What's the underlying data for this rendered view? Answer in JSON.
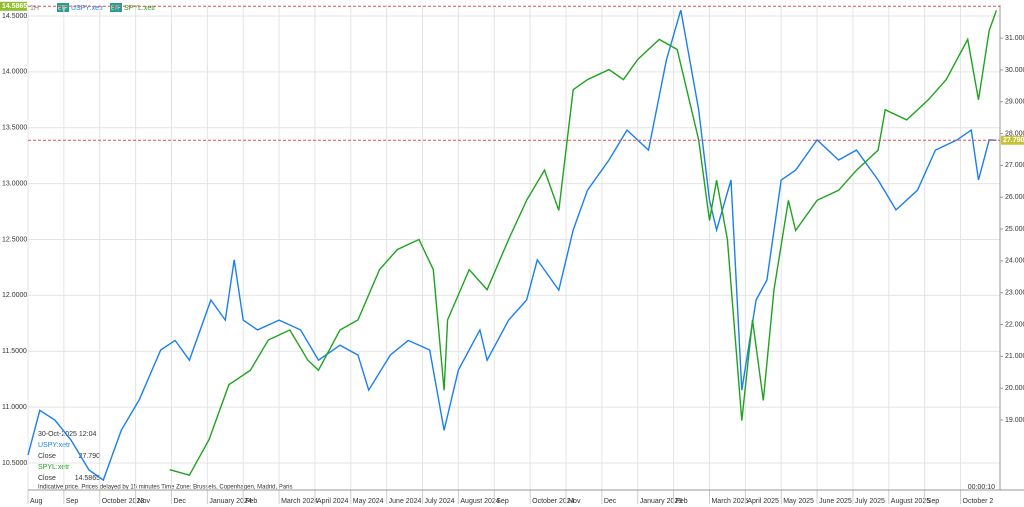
{
  "chart_data": {
    "type": "line",
    "interval": "1H",
    "series": [
      {
        "name": "USPY:xetr",
        "badge": "ETF",
        "color": "#1a7ff0",
        "axis": "y2",
        "x": [
          0,
          0.33,
          0.75,
          1.2,
          1.7,
          2.1,
          2.6,
          3.1,
          3.7,
          4.1,
          4.5,
          5.1,
          5.5,
          5.75,
          6.0,
          6.4,
          7.0,
          7.6,
          8.1,
          8.7,
          9.2,
          9.5,
          10.1,
          10.6,
          11.2,
          11.6,
          12.0,
          12.6,
          12.8,
          13.4,
          13.9,
          14.2,
          14.8,
          15.2,
          15.6,
          16.2,
          16.7,
          17.3,
          17.8,
          18.2,
          18.7,
          19.0,
          19.2,
          19.6,
          19.9,
          20.3,
          20.6,
          21.0,
          21.4,
          22.0,
          22.6,
          23.1,
          23.7,
          24.2,
          24.8,
          25.3,
          25.9,
          26.3,
          26.5,
          26.8,
          27.0
        ],
        "values": [
          17.9,
          19.3,
          19.0,
          18.37,
          17.43,
          17.11,
          18.68,
          19.63,
          21.2,
          21.5,
          20.88,
          22.77,
          22.14,
          24.03,
          22.14,
          21.83,
          22.14,
          21.83,
          20.88,
          21.35,
          21.04,
          19.94,
          21.04,
          21.5,
          21.2,
          18.68,
          20.57,
          21.83,
          20.88,
          22.14,
          22.77,
          24.03,
          23.08,
          24.97,
          26.22,
          27.17,
          28.11,
          27.48,
          30.31,
          31.88,
          28.74,
          25.91,
          24.97,
          26.54,
          19.94,
          22.77,
          23.4,
          26.54,
          26.85,
          27.8,
          27.17,
          27.48,
          26.54,
          25.6,
          26.22,
          27.48,
          27.8,
          28.11,
          26.54,
          27.8,
          27.79
        ]
      },
      {
        "name": "SPYL:xetr",
        "badge": "ETF",
        "color": "#1fa31f",
        "x": [
          3.95,
          4.5,
          5.05,
          5.6,
          6.2,
          6.7,
          7.3,
          7.8,
          8.1,
          8.7,
          9.2,
          9.8,
          10.3,
          10.9,
          11.3,
          11.6,
          11.7,
          12.3,
          12.8,
          13.4,
          13.9,
          14.4,
          14.8,
          15.2,
          15.6,
          16.2,
          16.6,
          17.0,
          17.6,
          18.1,
          18.7,
          19.0,
          19.2,
          19.5,
          19.9,
          20.2,
          20.5,
          20.8,
          21.2,
          21.4,
          22.0,
          22.6,
          23.1,
          23.7,
          23.9,
          24.5,
          25.1,
          25.6,
          26.2,
          26.5,
          26.8,
          27.0
        ],
        "values": [
          10.44,
          10.39,
          10.71,
          11.2,
          11.33,
          11.6,
          11.69,
          11.42,
          11.33,
          11.69,
          11.78,
          12.23,
          12.41,
          12.5,
          12.23,
          11.15,
          11.78,
          12.23,
          12.05,
          12.5,
          12.85,
          13.12,
          12.76,
          13.84,
          13.93,
          14.02,
          13.93,
          14.11,
          14.29,
          14.2,
          13.39,
          12.67,
          13.03,
          12.5,
          10.88,
          11.78,
          11.06,
          12.05,
          12.85,
          12.58,
          12.85,
          12.94,
          13.12,
          13.3,
          13.66,
          13.57,
          13.75,
          13.93,
          14.29,
          13.75,
          14.37,
          14.55
        ]
      }
    ],
    "xlim": [
      0,
      27.1
    ],
    "xticks": [
      {
        "value": 0,
        "label": "Aug"
      },
      {
        "value": 1,
        "label": "Sep"
      },
      {
        "value": 2,
        "label": "October 2023"
      },
      {
        "value": 3,
        "label": "Nov"
      },
      {
        "value": 4,
        "label": "Dec"
      },
      {
        "value": 5,
        "label": "January 2024"
      },
      {
        "value": 6,
        "label": "Feb"
      },
      {
        "value": 7,
        "label": "March 2024"
      },
      {
        "value": 8,
        "label": "April 2024"
      },
      {
        "value": 9,
        "label": "May 2024"
      },
      {
        "value": 10,
        "label": "June 2024"
      },
      {
        "value": 11,
        "label": "July 2024"
      },
      {
        "value": 12,
        "label": "August 2024"
      },
      {
        "value": 13,
        "label": "Sep"
      },
      {
        "value": 14,
        "label": "October 2024"
      },
      {
        "value": 15,
        "label": "Nov"
      },
      {
        "value": 16,
        "label": "Dec"
      },
      {
        "value": 17,
        "label": "January 2025"
      },
      {
        "value": 18,
        "label": "Feb"
      },
      {
        "value": 19,
        "label": "March 2025"
      },
      {
        "value": 20,
        "label": "April 2025"
      },
      {
        "value": 21,
        "label": "May 2025"
      },
      {
        "value": 22,
        "label": "June 2025"
      },
      {
        "value": 23,
        "label": "July 2025"
      },
      {
        "value": 24,
        "label": "August 2025"
      },
      {
        "value": 25,
        "label": "Sep"
      },
      {
        "value": 26,
        "label": "October 2"
      }
    ],
    "ylim": [
      10.258,
      14.598
    ],
    "yticks": [
      {
        "value": 10.5,
        "label": "10.5000"
      },
      {
        "value": 11,
        "label": "11.0000"
      },
      {
        "value": 11.5,
        "label": "11.5000"
      },
      {
        "value": 12,
        "label": "12.0000"
      },
      {
        "value": 12.5,
        "label": "12.5000"
      },
      {
        "value": 13,
        "label": "13.0000"
      },
      {
        "value": 13.5,
        "label": "13.5000"
      },
      {
        "value": 14,
        "label": "14.0000"
      },
      {
        "value": 14.5,
        "label": "14.5000"
      }
    ],
    "y2lim": [
      16.8,
      32.04
    ],
    "y2ticks": [
      {
        "value": 19,
        "label": "19.000"
      },
      {
        "value": 20,
        "label": "20.000"
      },
      {
        "value": 21,
        "label": "21.000"
      },
      {
        "value": 22,
        "label": "22.000"
      },
      {
        "value": 23,
        "label": "23.000"
      },
      {
        "value": 24,
        "label": "24.000"
      },
      {
        "value": 25,
        "label": "25.000"
      },
      {
        "value": 26,
        "label": "26.000"
      },
      {
        "value": 27,
        "label": "27.000"
      },
      {
        "value": 28,
        "label": "28.000"
      },
      {
        "value": 29,
        "label": "29.000"
      },
      {
        "value": 30,
        "label": "30.000"
      },
      {
        "value": 31,
        "label": "31.000"
      }
    ],
    "grid": true,
    "info": {
      "date": "30-Oct-2025 12:04",
      "items": [
        {
          "name": "USPY:xetr",
          "field": "Close",
          "value": 27.79,
          "value_label": "27.790"
        },
        {
          "name": "SPYL:xetr",
          "field": "Close",
          "value": 14.5865
        }
      ]
    },
    "footer": "Indicative price. Prices delayed by 15 minutes   Time Zone: Brussels, Copenhagen, Madrid, Paris",
    "timer": "00:00:10"
  }
}
